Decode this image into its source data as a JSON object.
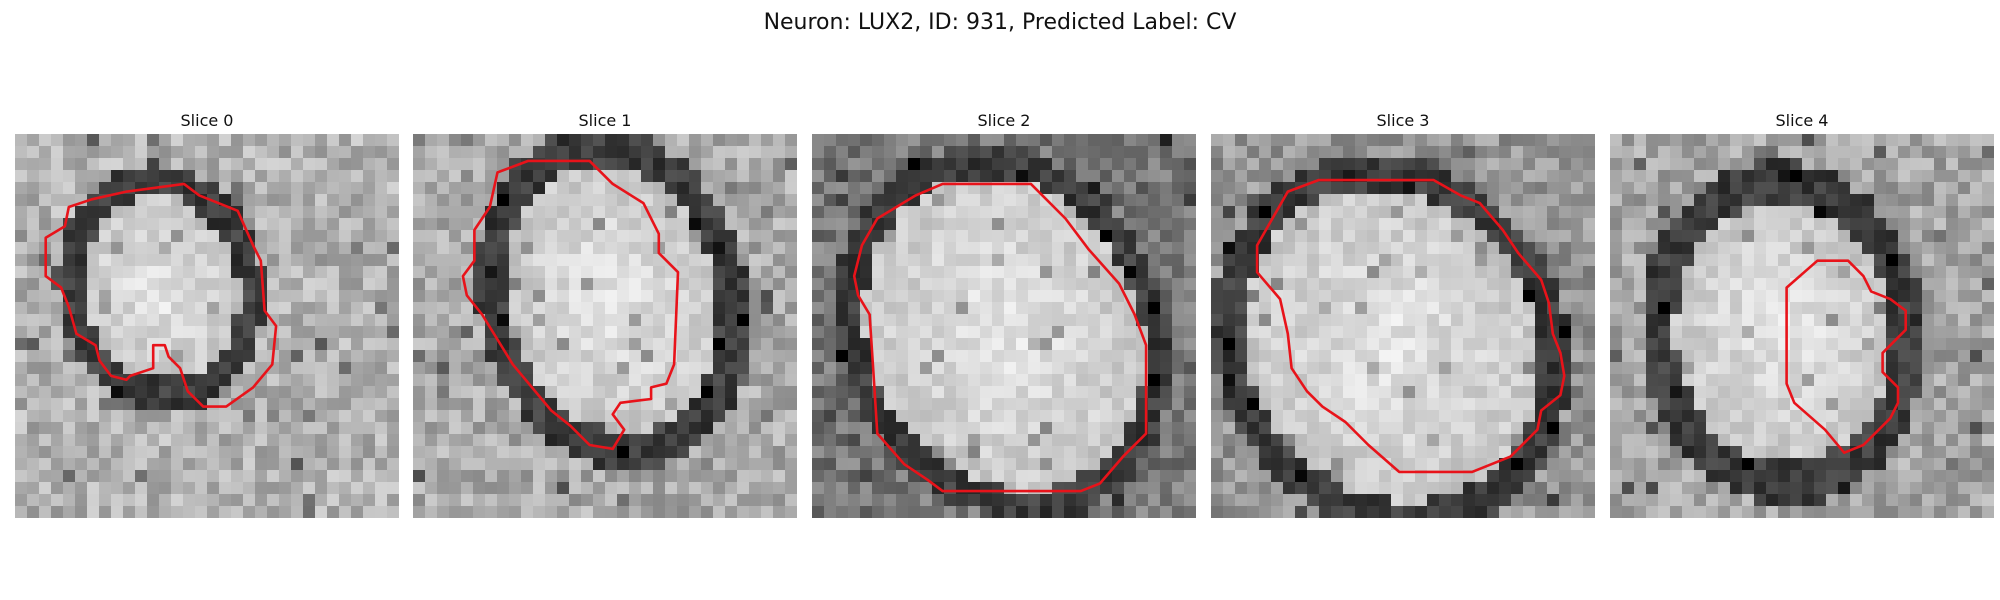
{
  "figure": {
    "title": "Neuron: LUX2, ID: 931, Predicted Label: CV"
  },
  "colors": {
    "contour": "#e8131a",
    "background": "#ffffff",
    "membrane_dark": "#303030",
    "cytoplasm_light": "#d8d8d8"
  },
  "slices": [
    {
      "label": "Slice 0"
    },
    {
      "label": "Slice 1"
    },
    {
      "label": "Slice 2"
    },
    {
      "label": "Slice 3"
    },
    {
      "label": "Slice 4"
    }
  ]
}
